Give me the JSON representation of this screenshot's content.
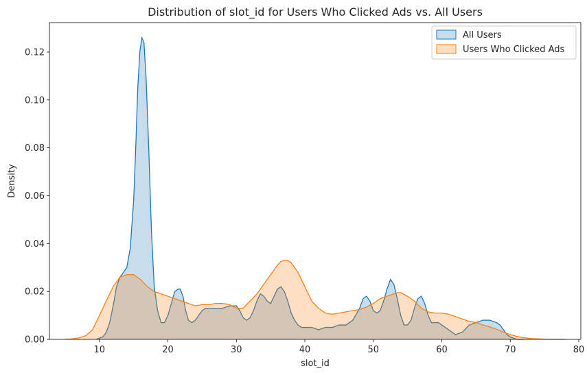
{
  "chart_data": {
    "type": "area",
    "title": "Distribution of slot_id for Users Who Clicked Ads vs. All Users",
    "xlabel": "slot_id",
    "ylabel": "Density",
    "xlim": [
      2.7,
      80.3
    ],
    "ylim": [
      0,
      0.1323
    ],
    "xticks": [
      10,
      20,
      30,
      40,
      50,
      60,
      70,
      80
    ],
    "xtick_labels": [
      "10",
      "20",
      "30",
      "40",
      "50",
      "60",
      "70",
      "80"
    ],
    "yticks": [
      0,
      0.02,
      0.04,
      0.06,
      0.08,
      0.1,
      0.12
    ],
    "ytick_labels": [
      "0.00",
      "0.02",
      "0.04",
      "0.06",
      "0.08",
      "0.10",
      "0.12"
    ],
    "legend": {
      "position": "upper right"
    },
    "series": [
      {
        "name": "All Users",
        "color": "#1f77b4",
        "fill_opacity": 0.25,
        "x": [
          9.5,
          10.5,
          11.0,
          11.5,
          12.0,
          12.5,
          13.0,
          13.5,
          14.0,
          14.5,
          15.0,
          15.3,
          15.6,
          15.9,
          16.2,
          16.5,
          16.8,
          17.2,
          17.6,
          18.0,
          18.5,
          19.0,
          19.5,
          20.0,
          20.5,
          21.0,
          21.5,
          21.8,
          22.2,
          22.6,
          23.0,
          23.5,
          24.0,
          24.5,
          25.0,
          25.5,
          26.0,
          27.0,
          28.0,
          29.0,
          29.5,
          30.0,
          30.5,
          31.0,
          31.5,
          32.0,
          32.5,
          33.0,
          33.5,
          34.0,
          34.5,
          35.0,
          35.5,
          36.0,
          36.5,
          37.0,
          37.5,
          38.0,
          38.5,
          39.0,
          39.5,
          40.0,
          41.0,
          42.0,
          43.0,
          44.0,
          45.0,
          46.0,
          47.0,
          48.0,
          48.5,
          49.0,
          49.5,
          50.0,
          50.5,
          51.0,
          51.5,
          52.0,
          52.5,
          53.0,
          53.5,
          54.0,
          54.5,
          55.0,
          55.5,
          56.0,
          56.5,
          57.0,
          57.5,
          58.0,
          58.5,
          59.0,
          59.5,
          60.0,
          60.5,
          61.0,
          62.0,
          63.0,
          64.0,
          65.0,
          66.0,
          67.0,
          68.0,
          68.5,
          69.0,
          69.5,
          70.0,
          70.5,
          71.0,
          72.0
        ],
        "y": [
          0.0,
          0.001,
          0.003,
          0.007,
          0.014,
          0.022,
          0.026,
          0.028,
          0.03,
          0.038,
          0.058,
          0.08,
          0.105,
          0.12,
          0.126,
          0.124,
          0.11,
          0.08,
          0.045,
          0.022,
          0.012,
          0.007,
          0.007,
          0.01,
          0.015,
          0.02,
          0.021,
          0.021,
          0.018,
          0.012,
          0.008,
          0.007,
          0.008,
          0.01,
          0.012,
          0.013,
          0.013,
          0.013,
          0.013,
          0.014,
          0.014,
          0.014,
          0.012,
          0.009,
          0.008,
          0.009,
          0.012,
          0.016,
          0.019,
          0.018,
          0.016,
          0.015,
          0.018,
          0.021,
          0.022,
          0.02,
          0.016,
          0.011,
          0.008,
          0.006,
          0.005,
          0.005,
          0.005,
          0.004,
          0.005,
          0.005,
          0.006,
          0.006,
          0.008,
          0.013,
          0.017,
          0.018,
          0.016,
          0.012,
          0.011,
          0.012,
          0.016,
          0.021,
          0.025,
          0.023,
          0.017,
          0.01,
          0.006,
          0.006,
          0.008,
          0.013,
          0.017,
          0.018,
          0.015,
          0.01,
          0.007,
          0.007,
          0.007,
          0.006,
          0.005,
          0.004,
          0.002,
          0.003,
          0.006,
          0.007,
          0.008,
          0.008,
          0.007,
          0.006,
          0.004,
          0.002,
          0.001,
          0.0005,
          0.0,
          0.0
        ]
      },
      {
        "name": "Users Who Clicked Ads",
        "color": "#ff7f0e",
        "fill_opacity": 0.25,
        "x": [
          5.0,
          6.0,
          7.0,
          8.0,
          9.0,
          10.0,
          11.0,
          12.0,
          13.0,
          14.0,
          15.0,
          16.0,
          17.0,
          18.0,
          19.0,
          20.0,
          21.0,
          22.0,
          23.0,
          24.0,
          25.0,
          26.0,
          27.0,
          28.0,
          29.0,
          30.0,
          31.0,
          32.0,
          33.0,
          34.0,
          35.0,
          36.0,
          36.5,
          37.0,
          37.5,
          38.0,
          39.0,
          40.0,
          41.0,
          42.0,
          43.0,
          44.0,
          45.0,
          46.0,
          47.0,
          48.0,
          49.0,
          50.0,
          51.0,
          52.0,
          53.0,
          53.5,
          54.0,
          55.0,
          56.0,
          57.0,
          58.0,
          59.0,
          60.0,
          61.0,
          62.0,
          63.0,
          64.0,
          65.0,
          66.0,
          67.0,
          68.0,
          69.0,
          70.0,
          71.0,
          72.0,
          73.0,
          74.0,
          75.0,
          76.0,
          77.0,
          78.0
        ],
        "y": [
          0.0,
          0.0002,
          0.0006,
          0.0015,
          0.004,
          0.01,
          0.016,
          0.022,
          0.026,
          0.027,
          0.027,
          0.025,
          0.022,
          0.02,
          0.019,
          0.018,
          0.017,
          0.016,
          0.015,
          0.014,
          0.0145,
          0.0145,
          0.015,
          0.015,
          0.0145,
          0.013,
          0.013,
          0.016,
          0.019,
          0.023,
          0.027,
          0.031,
          0.0325,
          0.033,
          0.033,
          0.032,
          0.028,
          0.022,
          0.016,
          0.013,
          0.011,
          0.0105,
          0.011,
          0.0115,
          0.012,
          0.0125,
          0.0135,
          0.015,
          0.017,
          0.018,
          0.019,
          0.0195,
          0.0195,
          0.018,
          0.016,
          0.013,
          0.0115,
          0.011,
          0.011,
          0.0105,
          0.0095,
          0.0085,
          0.0075,
          0.007,
          0.006,
          0.0052,
          0.0042,
          0.003,
          0.002,
          0.0012,
          0.0007,
          0.0003,
          0.0002,
          0.0001,
          0.0,
          0.0,
          0.0
        ]
      }
    ]
  }
}
